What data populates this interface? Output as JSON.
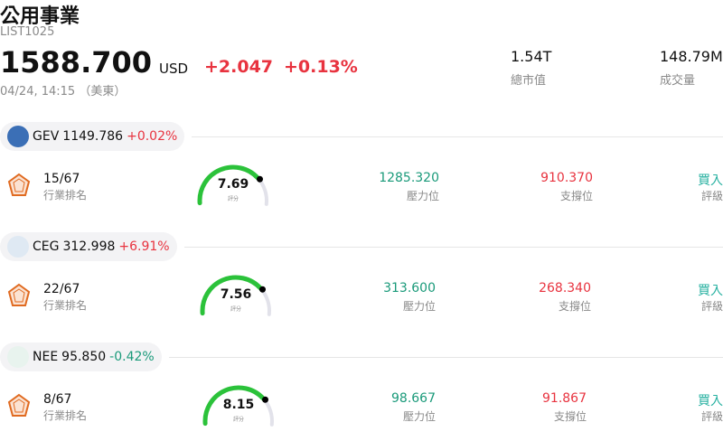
{
  "header": {
    "title": "公用事業",
    "code": "LIST1025",
    "price": "1588.700",
    "currency": "USD",
    "change": "+2.047",
    "change_pct": "+0.13%",
    "time": "04/24, 14:15 （美東）",
    "market_cap": "1.54T",
    "market_cap_label": "總市值",
    "volume": "148.79M",
    "volume_label": "成交量"
  },
  "stocks": [
    {
      "ticker": "GEV",
      "price": "1149.786",
      "change_pct": "+0.02%",
      "rank": "15/67",
      "rank_label": "行業排名",
      "score": "7.69",
      "score_label": "評分",
      "resistance": "1285.320",
      "resistance_label": "壓力位",
      "support": "910.370",
      "support_label": "支撐位",
      "rating": "買入",
      "rating_label": "評級"
    },
    {
      "ticker": "CEG",
      "price": "312.998",
      "change_pct": "+6.91%",
      "rank": "22/67",
      "rank_label": "行業排名",
      "score": "7.56",
      "score_label": "評分",
      "resistance": "313.600",
      "resistance_label": "壓力位",
      "support": "268.340",
      "support_label": "支撐位",
      "rating": "買入",
      "rating_label": "評級"
    },
    {
      "ticker": "NEE",
      "price": "95.850",
      "change_pct": "-0.42%",
      "rank": "8/67",
      "rank_label": "行業排名",
      "score": "8.15",
      "score_label": "評分",
      "resistance": "98.667",
      "resistance_label": "壓力位",
      "support": "91.867",
      "support_label": "支撐位",
      "rating": "買入",
      "rating_label": "評級"
    }
  ]
}
